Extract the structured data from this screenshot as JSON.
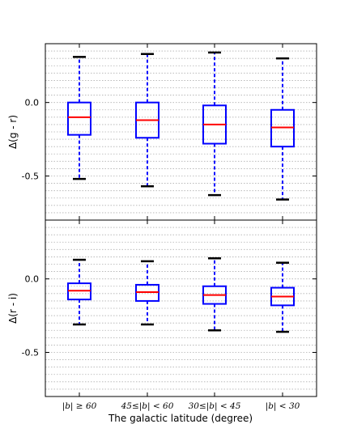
{
  "chart_data": [
    {
      "type": "box",
      "ylabel": "Δ(g - r)",
      "ylim": [
        -0.8,
        0.4
      ],
      "yticks": [
        0.0,
        -0.5
      ],
      "ytick_labels": [
        "0.0",
        "-0.5"
      ],
      "grid": "horizontal dotted every 0.05",
      "categories": [
        "|b| ≥ 60",
        "45≤|b| < 60",
        "30≤|b| < 45",
        "|b| < 30"
      ],
      "boxes": [
        {
          "whisker_low": -0.52,
          "q1": -0.22,
          "median": -0.1,
          "q3": 0.0,
          "whisker_high": 0.31
        },
        {
          "whisker_low": -0.57,
          "q1": -0.24,
          "median": -0.12,
          "q3": 0.0,
          "whisker_high": 0.33
        },
        {
          "whisker_low": -0.63,
          "q1": -0.28,
          "median": -0.15,
          "q3": -0.02,
          "whisker_high": 0.34
        },
        {
          "whisker_low": -0.66,
          "q1": -0.3,
          "median": -0.17,
          "q3": -0.05,
          "whisker_high": 0.3
        }
      ]
    },
    {
      "type": "box",
      "ylabel": "Δ(r - i)",
      "ylim": [
        -0.8,
        0.4
      ],
      "yticks": [
        0.0,
        -0.5
      ],
      "ytick_labels": [
        "0.0",
        "-0.5"
      ],
      "grid": "horizontal dotted every 0.05",
      "xlabel": "The galactic latitude (degree)",
      "categories": [
        "|b| ≥ 60",
        "45≤|b| < 60",
        "30≤|b| < 45",
        "|b| < 30"
      ],
      "boxes": [
        {
          "whisker_low": -0.31,
          "q1": -0.14,
          "median": -0.08,
          "q3": -0.03,
          "whisker_high": 0.13
        },
        {
          "whisker_low": -0.31,
          "q1": -0.15,
          "median": -0.09,
          "q3": -0.04,
          "whisker_high": 0.12
        },
        {
          "whisker_low": -0.35,
          "q1": -0.17,
          "median": -0.11,
          "q3": -0.05,
          "whisker_high": 0.14
        },
        {
          "whisker_low": -0.36,
          "q1": -0.18,
          "median": -0.12,
          "q3": -0.06,
          "whisker_high": 0.11
        }
      ]
    }
  ],
  "colors": {
    "box": "#0000ff",
    "median": "#ff0000",
    "cap": "#000000",
    "grid": "#b0b0b0",
    "axes": "#000000"
  }
}
